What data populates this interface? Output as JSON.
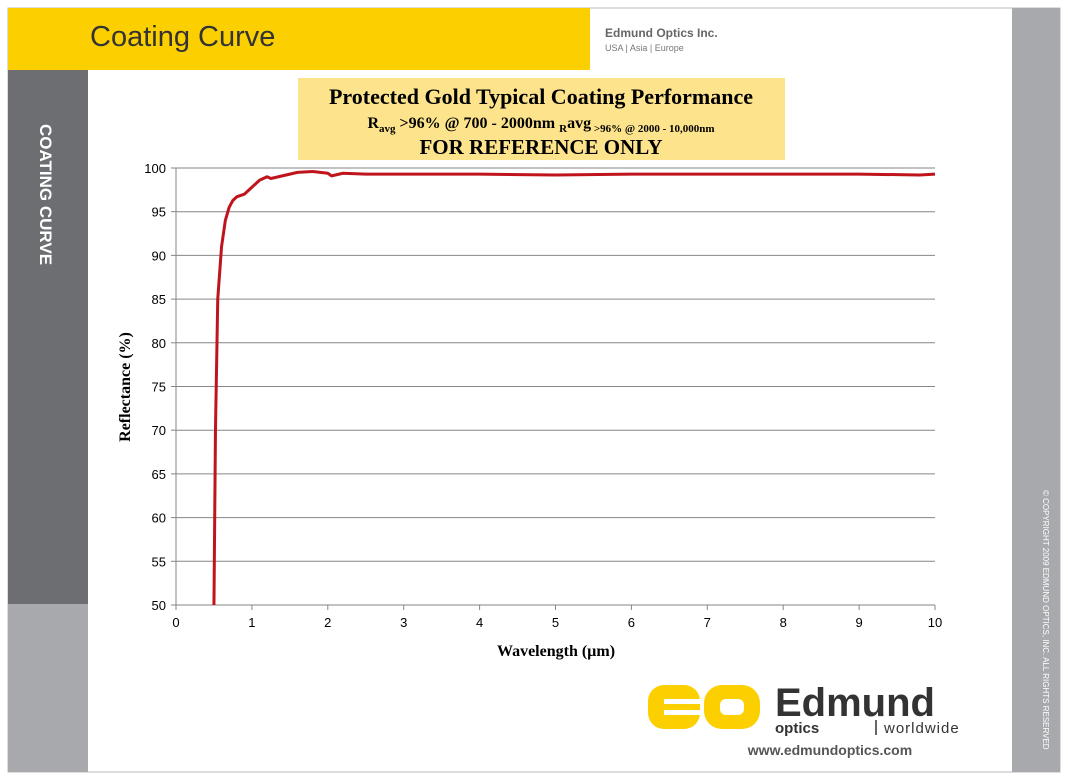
{
  "header": {
    "title": "Coating Curve",
    "company": "Edmund Optics Inc.",
    "regions": "USA | Asia | Europe"
  },
  "sidebar": "COATING CURVE",
  "copyright": "© COPYRIGHT 2009 EDMUND OPTICS, INC. ALL RIGHTS RESERVED",
  "logo": {
    "brand": "Edmund",
    "tagline": [
      "optics",
      "worldwide"
    ],
    "url": "www.edmundoptics.com"
  },
  "chart_data": {
    "type": "line",
    "title": "Protected Gold Typical Coating Performance",
    "subtitle": [
      "R",
      "avg",
      " >96% @ 700 - 2000nm ",
      "R",
      "avg",
      " >96% @ 2000 - 10,000nm"
    ],
    "annotation": "FOR REFERENCE ONLY",
    "xlabel": "Wavelength (µm)",
    "ylabel": "Reflectance (%)",
    "xlim": [
      0,
      10
    ],
    "ylim": [
      50,
      100
    ],
    "xticks": [
      0,
      1,
      2,
      3,
      4,
      5,
      6,
      7,
      8,
      9,
      10
    ],
    "yticks": [
      50,
      55,
      60,
      65,
      70,
      75,
      80,
      85,
      90,
      95,
      100
    ],
    "grid": true,
    "series": [
      {
        "name": "Protected Gold",
        "color": "#c0141c",
        "x": [
          0.5,
          0.52,
          0.55,
          0.6,
          0.65,
          0.7,
          0.75,
          0.8,
          0.9,
          1.0,
          1.1,
          1.2,
          1.25,
          1.4,
          1.6,
          1.8,
          2.0,
          2.05,
          2.2,
          2.5,
          3,
          4,
          5,
          6,
          7,
          8,
          9,
          9.8,
          10
        ],
        "values": [
          50,
          70,
          85,
          91,
          94,
          95.5,
          96.3,
          96.7,
          97,
          97.8,
          98.6,
          99,
          98.8,
          99.1,
          99.5,
          99.6,
          99.4,
          99.1,
          99.4,
          99.3,
          99.3,
          99.3,
          99.2,
          99.3,
          99.3,
          99.3,
          99.3,
          99.2,
          99.3
        ]
      }
    ]
  }
}
